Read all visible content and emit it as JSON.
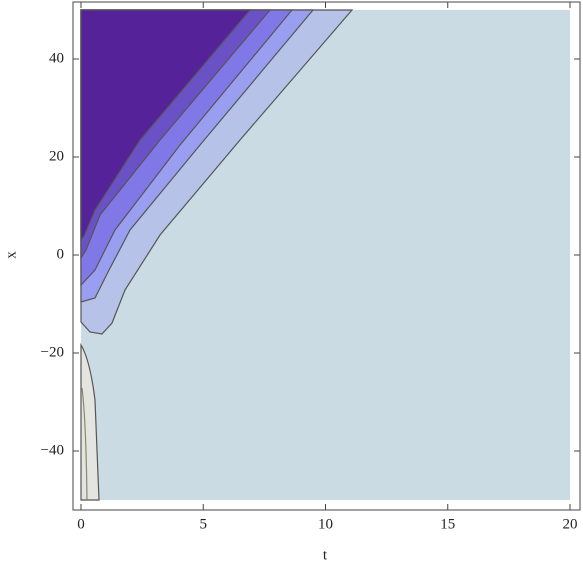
{
  "chart_data": {
    "type": "contour",
    "xlabel": "t",
    "ylabel": "x",
    "xlim": [
      0,
      20
    ],
    "ylim": [
      -50,
      50
    ],
    "xticks": [
      0,
      5,
      10,
      15,
      20
    ],
    "yticks": [
      {
        "value": -40,
        "label": "−40"
      },
      {
        "value": -20,
        "label": "−20"
      },
      0,
      20,
      40
    ]
  }
}
